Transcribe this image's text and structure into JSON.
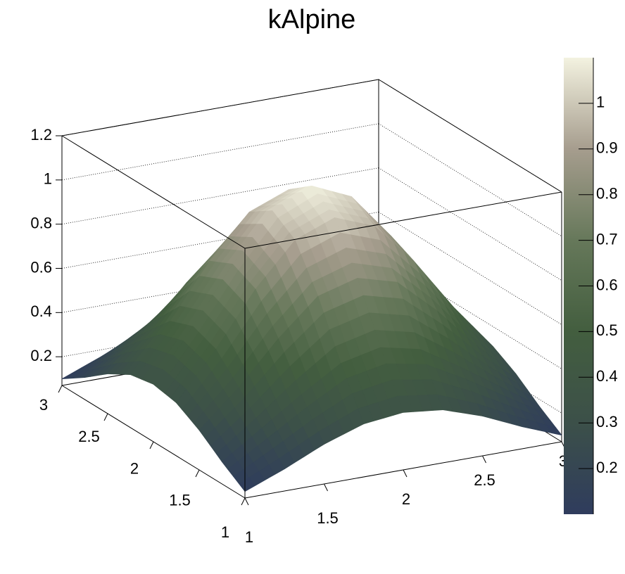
{
  "chart_data": {
    "type": "surface",
    "title": "kAlpine",
    "x": [
      1,
      1.25,
      1.5,
      1.75,
      2,
      2.25,
      2.5,
      2.75,
      3
    ],
    "y": [
      1,
      1.25,
      1.5,
      1.75,
      2,
      2.25,
      2.5,
      2.75,
      3
    ],
    "z": [
      [
        0.1,
        0.17,
        0.25,
        0.31,
        0.33,
        0.31,
        0.25,
        0.17,
        0.1
      ],
      [
        0.17,
        0.29,
        0.41,
        0.52,
        0.56,
        0.52,
        0.41,
        0.29,
        0.17
      ],
      [
        0.25,
        0.41,
        0.6,
        0.76,
        0.81,
        0.76,
        0.6,
        0.41,
        0.25
      ],
      [
        0.31,
        0.52,
        0.76,
        0.95,
        1.02,
        0.95,
        0.76,
        0.52,
        0.31
      ],
      [
        0.33,
        0.56,
        0.81,
        1.02,
        1.1,
        1.02,
        0.81,
        0.56,
        0.33
      ],
      [
        0.31,
        0.52,
        0.76,
        0.95,
        1.02,
        0.95,
        0.76,
        0.52,
        0.31
      ],
      [
        0.25,
        0.41,
        0.6,
        0.76,
        0.81,
        0.76,
        0.6,
        0.41,
        0.25
      ],
      [
        0.17,
        0.29,
        0.41,
        0.52,
        0.56,
        0.52,
        0.41,
        0.29,
        0.17
      ],
      [
        0.1,
        0.17,
        0.25,
        0.31,
        0.33,
        0.31,
        0.25,
        0.17,
        0.1
      ]
    ],
    "xlim": [
      1,
      3
    ],
    "ylim": [
      1,
      3
    ],
    "zlim": [
      0.07,
      1.2
    ],
    "xticks": [
      1,
      1.5,
      2,
      2.5,
      3
    ],
    "yticks": [
      1,
      1.5,
      2,
      2.5,
      3
    ],
    "zticks": [
      0.2,
      0.4,
      0.6,
      0.8,
      1,
      1.2
    ],
    "clim": [
      0.1,
      1.1
    ],
    "cticks": [
      0.2,
      0.3,
      0.4,
      0.5,
      0.6,
      0.7,
      0.8,
      0.9,
      1
    ],
    "palette": [
      "#2f3c5d",
      "#3c5049",
      "#435e3f",
      "#66785a",
      "#a69d8e",
      "#f3f2e0"
    ],
    "grid": true
  }
}
